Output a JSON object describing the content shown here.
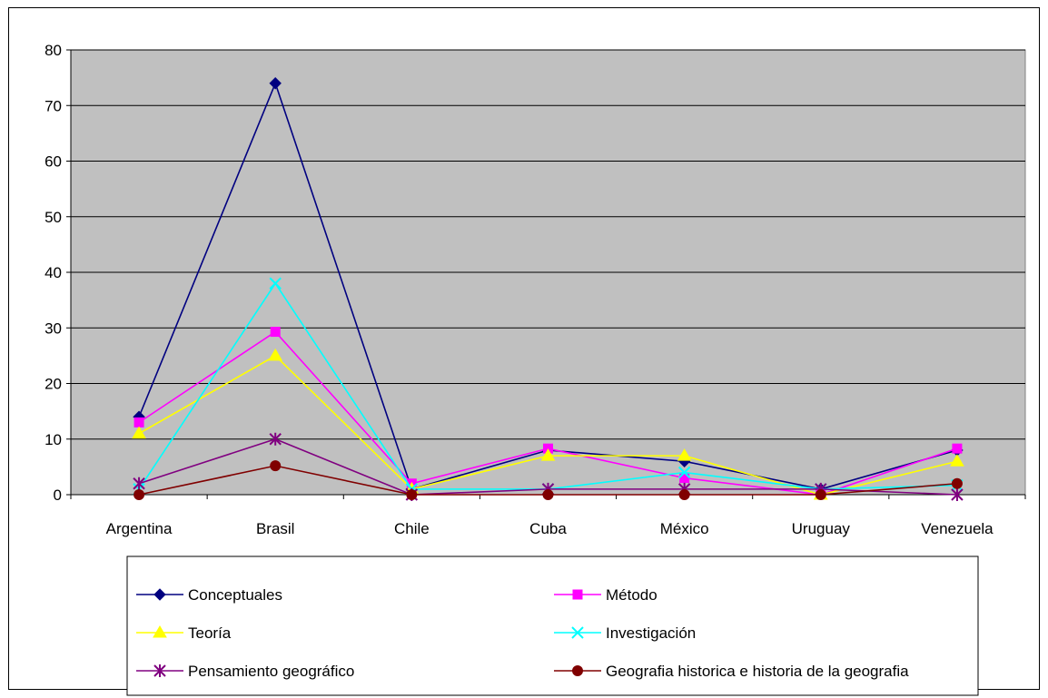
{
  "chart_data": {
    "type": "line",
    "title": "",
    "xlabel": "",
    "ylabel": "",
    "categories": [
      "Argentina",
      "Brasil",
      "Chile",
      "Cuba",
      "México",
      "Uruguay",
      "Venezuela"
    ],
    "ylim": [
      0,
      80
    ],
    "yticks": [
      "0",
      "10",
      "20",
      "30",
      "40",
      "50",
      "60",
      "70",
      "80"
    ],
    "grid": true,
    "plot_background": "#C0C0C0",
    "legend_position": "bottom",
    "series": [
      {
        "name": "Conceptuales",
        "values": [
          14,
          74,
          1,
          8,
          6,
          1,
          8
        ],
        "color": "#000080",
        "marker": "diamond"
      },
      {
        "name": "Método",
        "values": [
          13,
          29.3,
          2,
          8.3,
          3,
          0,
          8.3
        ],
        "color": "#FF00FF",
        "marker": "square"
      },
      {
        "name": "Teoría",
        "values": [
          11,
          25,
          1,
          7,
          7,
          0,
          6
        ],
        "color": "#FFFF00",
        "marker": "triangle"
      },
      {
        "name": "Investigación",
        "values": [
          1,
          38,
          1,
          1,
          4,
          1,
          1.7
        ],
        "color": "#00FFFF",
        "marker": "x"
      },
      {
        "name": "Pensamiento geográfico",
        "values": [
          2,
          10,
          0,
          1,
          1,
          1,
          0
        ],
        "color": "#800080",
        "marker": "star"
      },
      {
        "name": "Geografia historica e historia de la geografia",
        "values": [
          0,
          5.2,
          0,
          0,
          0,
          0,
          2
        ],
        "color": "#800000",
        "marker": "circle"
      }
    ]
  }
}
